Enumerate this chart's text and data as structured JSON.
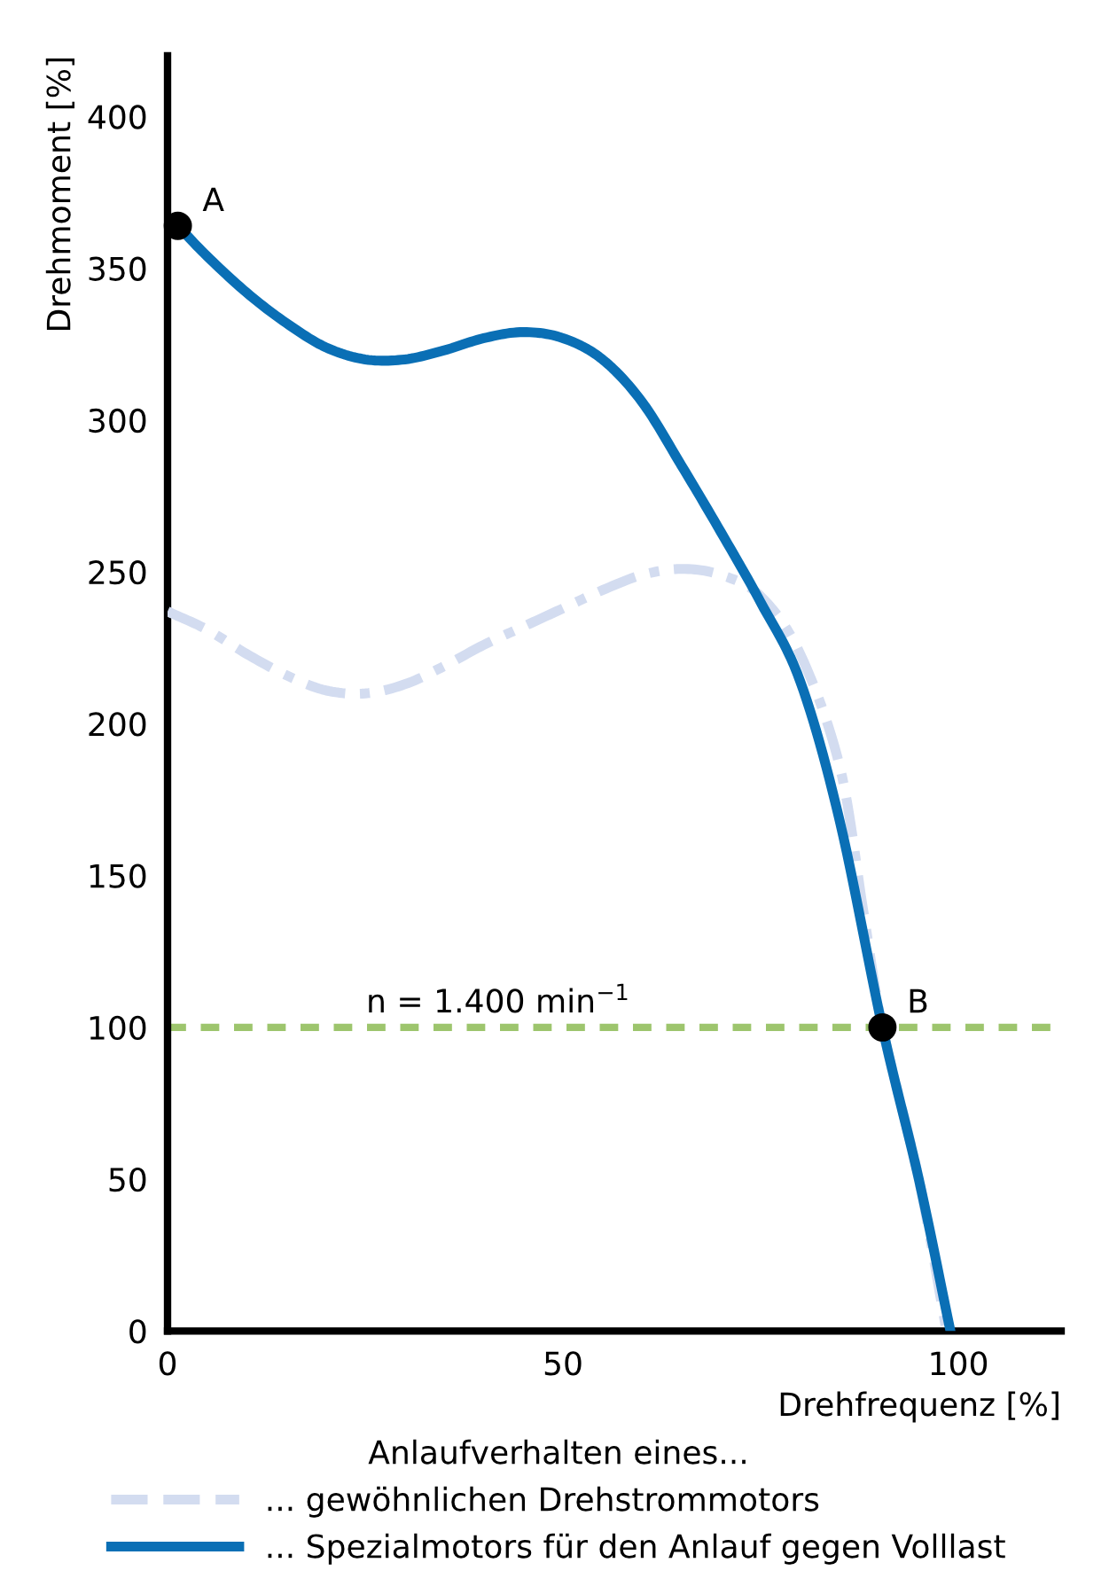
{
  "chart_data": {
    "type": "line",
    "xlabel": "Drehfrequenz [%]",
    "ylabel": "Drehmoment [%]",
    "legend_title": "Anlaufverhalten eines...",
    "legend": "bottom",
    "xlim": [
      0,
      113
    ],
    "ylim": [
      0,
      420
    ],
    "xticks": [
      0,
      50,
      100
    ],
    "yticks": [
      0,
      50,
      100,
      150,
      200,
      250,
      300,
      350,
      400
    ],
    "grid": false,
    "series": [
      {
        "name": "... gewöhnlichen Drehstrommotors",
        "color": "#d3dcf0",
        "line_style": "dashdot",
        "x": [
          0,
          5,
          10,
          15,
          20,
          25,
          30,
          35,
          40,
          45,
          50,
          55,
          60,
          65,
          70,
          75,
          80,
          85,
          88,
          90.4,
          95,
          98.5
        ],
        "values": [
          237,
          231,
          223,
          216,
          211,
          210,
          213,
          219,
          226,
          232,
          238,
          244,
          249,
          251,
          249,
          242,
          223,
          186,
          138,
          100,
          50,
          0
        ]
      },
      {
        "name": "... Spezialmotors für den Anlauf gegen Volllast",
        "color": "#0a6fb5",
        "line_style": "solid",
        "x": [
          1.3,
          5,
          10,
          15,
          20,
          25,
          30,
          35,
          40,
          45,
          50,
          55,
          60,
          65,
          70,
          75,
          80,
          85,
          90.4,
          95,
          99
        ],
        "values": [
          364,
          354,
          342,
          332,
          324,
          320,
          320,
          323,
          327,
          329,
          327,
          320,
          306,
          285,
          263,
          240,
          214,
          168,
          100,
          50,
          0
        ]
      },
      {
        "type": "scatter",
        "color": "#000000",
        "marker": "circle",
        "x": [
          1.3,
          90.4
        ],
        "values": [
          364,
          100
        ]
      }
    ],
    "ref_lines": [
      {
        "axis": "y",
        "value": 100,
        "color": "#9dc56d",
        "line_style": "dashed"
      }
    ],
    "annotations": [
      {
        "text": "n = 1.400 min$^{−1}$",
        "x": 22,
        "y": 100
      },
      {
        "text": "A",
        "x": 1.3,
        "y": 364
      },
      {
        "text": "B",
        "x": 90.4,
        "y": 100
      }
    ]
  }
}
